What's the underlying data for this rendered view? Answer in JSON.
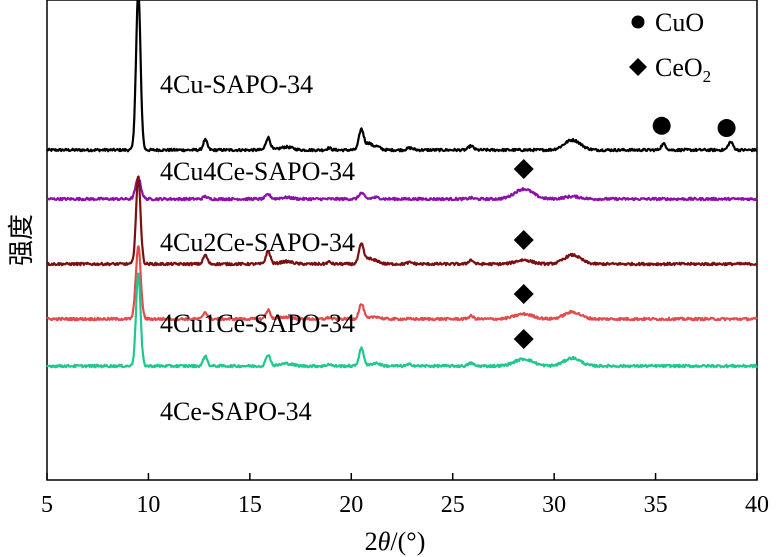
{
  "chart_data": {
    "type": "line",
    "title": "",
    "xlabel_parts": {
      "prefix": "2",
      "var": "θ",
      "suffix": "/(°)"
    },
    "xlabel": "2θ/(°)",
    "ylabel": "强度",
    "xlim": [
      5,
      40
    ],
    "xticks": [
      5,
      10,
      15,
      20,
      25,
      30,
      35,
      40
    ],
    "grid": false,
    "legend": {
      "placement": "top-right",
      "items": [
        {
          "symbol": "circle",
          "label": "CuO"
        },
        {
          "symbol": "diamond",
          "label_main": "CeO",
          "label_sub": "2"
        }
      ]
    },
    "series": [
      {
        "name": "4Cu-SAPO-34",
        "color": "#000000",
        "baseline": 3.0,
        "peaks": [
          [
            9.5,
            3.18,
            0.11
          ],
          [
            12.8,
            0.2,
            0.1
          ],
          [
            15.9,
            0.25,
            0.11
          ],
          [
            16.8,
            0.06,
            0.3
          ],
          [
            18.9,
            0.04,
            0.1
          ],
          [
            20.5,
            0.42,
            0.12
          ],
          [
            20.85,
            0.12,
            0.12
          ],
          [
            21.2,
            0.08,
            0.2
          ],
          [
            22.9,
            0.04,
            0.15
          ],
          [
            25.9,
            0.08,
            0.12
          ],
          [
            30.9,
            0.2,
            0.4
          ],
          [
            35.4,
            0.12,
            0.12
          ],
          [
            38.7,
            0.16,
            0.12
          ]
        ],
        "markers": [
          {
            "symbol": "circle",
            "x": 35.3
          },
          {
            "symbol": "circle",
            "x": 38.5
          }
        ]
      },
      {
        "name": "4Cu4Ce-SAPO-34",
        "color": "#8B10A8",
        "baseline": 2.02,
        "peaks": [
          [
            9.5,
            0.42,
            0.13
          ],
          [
            12.8,
            0.05,
            0.1
          ],
          [
            15.9,
            0.09,
            0.12
          ],
          [
            16.8,
            0.03,
            0.3
          ],
          [
            20.5,
            0.12,
            0.12
          ],
          [
            21.2,
            0.03,
            0.2
          ],
          [
            25.9,
            0.02,
            0.12
          ],
          [
            28.5,
            0.2,
            0.45
          ],
          [
            30.9,
            0.05,
            0.4
          ]
        ],
        "markers": [
          {
            "symbol": "diamond",
            "x": 28.5
          }
        ]
      },
      {
        "name": "4Cu2Ce-SAPO-34",
        "color": "#7A1010",
        "baseline": 0.72,
        "peaks": [
          [
            9.5,
            1.76,
            0.11
          ],
          [
            12.8,
            0.18,
            0.1
          ],
          [
            15.9,
            0.26,
            0.11
          ],
          [
            16.8,
            0.05,
            0.3
          ],
          [
            18.9,
            0.04,
            0.1
          ],
          [
            20.5,
            0.4,
            0.12
          ],
          [
            20.85,
            0.1,
            0.12
          ],
          [
            21.2,
            0.07,
            0.2
          ],
          [
            22.9,
            0.03,
            0.15
          ],
          [
            25.9,
            0.08,
            0.12
          ],
          [
            28.5,
            0.08,
            0.4
          ],
          [
            30.9,
            0.18,
            0.4
          ]
        ],
        "markers": [
          {
            "symbol": "diamond",
            "x": 28.5
          }
        ]
      },
      {
        "name": "4Cu1Ce-SAPO-34",
        "color": "#E04D4D",
        "baseline": -0.38,
        "peaks": [
          [
            9.5,
            1.46,
            0.12
          ],
          [
            12.8,
            0.14,
            0.1
          ],
          [
            15.9,
            0.18,
            0.11
          ],
          [
            16.8,
            0.04,
            0.3
          ],
          [
            18.9,
            0.03,
            0.1
          ],
          [
            20.5,
            0.3,
            0.12
          ],
          [
            21.2,
            0.05,
            0.2
          ],
          [
            25.9,
            0.06,
            0.12
          ],
          [
            28.5,
            0.1,
            0.45
          ],
          [
            30.9,
            0.14,
            0.4
          ]
        ],
        "markers": [
          {
            "symbol": "diamond",
            "x": 28.5
          }
        ]
      },
      {
        "name": "4Ce-SAPO-34",
        "color": "#1FC890",
        "baseline": -1.32,
        "peaks": [
          [
            9.5,
            1.88,
            0.11
          ],
          [
            12.8,
            0.2,
            0.1
          ],
          [
            15.9,
            0.23,
            0.11
          ],
          [
            16.8,
            0.05,
            0.3
          ],
          [
            18.9,
            0.04,
            0.1
          ],
          [
            20.5,
            0.35,
            0.12
          ],
          [
            21.2,
            0.06,
            0.2
          ],
          [
            22.9,
            0.03,
            0.15
          ],
          [
            25.9,
            0.06,
            0.12
          ],
          [
            28.5,
            0.14,
            0.45
          ],
          [
            30.9,
            0.16,
            0.4
          ]
        ],
        "markers": [
          {
            "symbol": "diamond",
            "x": 28.5
          }
        ]
      }
    ]
  }
}
